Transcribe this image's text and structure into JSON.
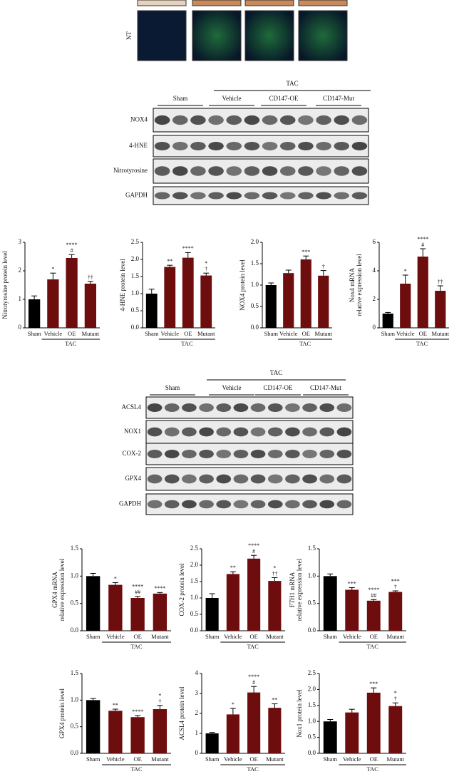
{
  "images": {
    "row_label": "NT"
  },
  "blot1": {
    "group_header": "TAC",
    "groups": [
      "Sham",
      "Vehicle",
      "CD147-OE",
      "CD147-Mut"
    ],
    "rows": [
      "NOX4",
      "4-HNE",
      "Nitrotyrosine",
      "GAPDH"
    ]
  },
  "blot2": {
    "group_header": "TAC",
    "groups": [
      "Sham",
      "Vehicle",
      "CD147-OE",
      "CD147-Mut"
    ],
    "rows": [
      "ACSL4",
      "NOX1",
      "COX-2",
      "GPX4",
      "GAPDH"
    ]
  },
  "chart_data": [
    {
      "type": "bar",
      "y_label": "Nitrotyrosine protein level",
      "x_group_label": "TAC",
      "categories": [
        "Sham",
        "Vehicle",
        "OE",
        "Mutant"
      ],
      "colors": [
        "#000000",
        "#6e0d0d",
        "#6e0d0d",
        "#6e0d0d"
      ],
      "values": [
        1,
        1.7,
        2.45,
        1.55
      ],
      "errors": [
        0.12,
        0.22,
        0.12,
        0.08
      ],
      "annotations": [
        [],
        [
          "*"
        ],
        [
          "****",
          "#"
        ],
        [
          "††"
        ]
      ],
      "ylim": [
        0,
        3
      ],
      "yticks": [
        0,
        1,
        2,
        3
      ]
    },
    {
      "type": "bar",
      "y_label": "4-HNE protein level",
      "x_group_label": "TAC",
      "categories": [
        "Sham",
        "Vehicle",
        "OE",
        "Mutant"
      ],
      "colors": [
        "#000000",
        "#6e0d0d",
        "#6e0d0d",
        "#6e0d0d"
      ],
      "values": [
        1,
        1.78,
        2.05,
        1.53
      ],
      "errors": [
        0.13,
        0.05,
        0.15,
        0.07
      ],
      "annotations": [
        [],
        [
          "**"
        ],
        [
          "****"
        ],
        [
          "*",
          "†"
        ]
      ],
      "ylim": [
        0,
        2.5
      ],
      "yticks": [
        {
          "value": 0,
          "label": "0.0"
        },
        0.5,
        {
          "value": 1,
          "label": "1.0"
        },
        1.5,
        {
          "value": 2,
          "label": "2.0"
        },
        2.5
      ]
    },
    {
      "type": "bar",
      "y_label": "NOX4 protein level",
      "x_group_label": "TAC",
      "categories": [
        "Sham",
        "Vehicle",
        "OE",
        "Mutant"
      ],
      "colors": [
        "#000000",
        "#6e0d0d",
        "#6e0d0d",
        "#6e0d0d"
      ],
      "values": [
        1,
        1.28,
        1.6,
        1.22
      ],
      "errors": [
        0.05,
        0.07,
        0.08,
        0.12
      ],
      "annotations": [
        [],
        [],
        [
          "***"
        ],
        [
          "†"
        ]
      ],
      "ylim": [
        0,
        2
      ],
      "yticks": [
        {
          "value": 0,
          "label": "0.0"
        },
        0.5,
        {
          "value": 1,
          "label": "1.0"
        },
        1.5,
        {
          "value": 2,
          "label": "2.0"
        }
      ]
    },
    {
      "type": "bar",
      "y_label": [
        "Nox4 mRNA",
        "relative expression level"
      ],
      "x_group_label": "TAC",
      "categories": [
        "Sham",
        "Vehicle",
        "OE",
        "Mutant"
      ],
      "colors": [
        "#000000",
        "#6e0d0d",
        "#6e0d0d",
        "#6e0d0d"
      ],
      "values": [
        1,
        3.1,
        5,
        2.6
      ],
      "errors": [
        0.08,
        0.6,
        0.55,
        0.35
      ],
      "annotations": [
        [],
        [
          "*"
        ],
        [
          "****",
          "#"
        ],
        [
          "††"
        ]
      ],
      "ylim": [
        0,
        6
      ],
      "yticks": [
        0,
        2,
        4,
        6
      ]
    },
    {
      "type": "bar",
      "y_label": [
        "GPX4 mRNA",
        "relative expression level"
      ],
      "x_group_label": "TAC",
      "categories": [
        "Sham",
        "Vehicle",
        "OE",
        "Mutant"
      ],
      "colors": [
        "#000000",
        "#6e0d0d",
        "#6e0d0d",
        "#6e0d0d"
      ],
      "values": [
        1,
        0.84,
        0.6,
        0.68
      ],
      "errors": [
        0.05,
        0.04,
        0.03,
        0.02
      ],
      "annotations": [
        [],
        [
          "*"
        ],
        [
          "****",
          "##"
        ],
        [
          "****"
        ]
      ],
      "ylim": [
        0,
        1.5
      ],
      "yticks": [
        {
          "value": 0,
          "label": "0.0"
        },
        0.5,
        {
          "value": 1,
          "label": "1.0"
        },
        1.5
      ]
    },
    {
      "type": "bar",
      "y_label": "COX-2 protein level",
      "x_group_label": "TAC",
      "categories": [
        "Sham",
        "Vehicle",
        "OE",
        "Mutant"
      ],
      "colors": [
        "#000000",
        "#6e0d0d",
        "#6e0d0d",
        "#6e0d0d"
      ],
      "values": [
        1,
        1.73,
        2.2,
        1.52
      ],
      "errors": [
        0.13,
        0.07,
        0.1,
        0.1
      ],
      "annotations": [
        [],
        [
          "**"
        ],
        [
          "****",
          "#"
        ],
        [
          "*",
          "††"
        ]
      ],
      "ylim": [
        0,
        2.5
      ],
      "yticks": [
        {
          "value": 0,
          "label": "0.0"
        },
        0.5,
        {
          "value": 1,
          "label": "1.0"
        },
        1.5,
        {
          "value": 2,
          "label": "2.0"
        },
        2.5
      ]
    },
    {
      "type": "bar",
      "y_label": [
        "FTH1 mRNA",
        "relative expression level"
      ],
      "x_group_label": "TAC",
      "categories": [
        "Sham",
        "Vehicle",
        "OE",
        "Mutant"
      ],
      "colors": [
        "#000000",
        "#6e0d0d",
        "#6e0d0d",
        "#6e0d0d"
      ],
      "values": [
        1,
        0.75,
        0.55,
        0.71
      ],
      "errors": [
        0.04,
        0.04,
        0.02,
        0.02
      ],
      "annotations": [
        [],
        [
          "***"
        ],
        [
          "****",
          "##"
        ],
        [
          "***",
          "†"
        ]
      ],
      "ylim": [
        0,
        1.5
      ],
      "yticks": [
        {
          "value": 0,
          "label": "0.0"
        },
        0.5,
        {
          "value": 1,
          "label": "1.0"
        },
        1.5
      ]
    },
    {
      "type": "bar",
      "y_label": "GPX4 protein level",
      "x_group_label": "TAC",
      "categories": [
        "Sham",
        "Vehicle",
        "OE",
        "Mutant"
      ],
      "colors": [
        "#000000",
        "#6e0d0d",
        "#6e0d0d",
        "#6e0d0d"
      ],
      "values": [
        1,
        0.8,
        0.68,
        0.83
      ],
      "errors": [
        0.03,
        0.03,
        0.03,
        0.07
      ],
      "annotations": [
        [],
        [
          "**"
        ],
        [
          "****"
        ],
        [
          "*",
          "†"
        ]
      ],
      "ylim": [
        0,
        1.5
      ],
      "yticks": [
        {
          "value": 0,
          "label": "0.0"
        },
        0.5,
        {
          "value": 1,
          "label": "1.0"
        },
        1.5
      ]
    },
    {
      "type": "bar",
      "y_label": "ACSL4 protein level",
      "x_group_label": "TAC",
      "categories": [
        "Sham",
        "Vehicle",
        "OE",
        "Mutant"
      ],
      "colors": [
        "#000000",
        "#6e0d0d",
        "#6e0d0d",
        "#6e0d0d"
      ],
      "values": [
        1,
        1.95,
        3.05,
        2.28
      ],
      "errors": [
        0.05,
        0.3,
        0.3,
        0.2
      ],
      "annotations": [
        [],
        [
          "*"
        ],
        [
          "****",
          "#"
        ],
        [
          "**"
        ]
      ],
      "ylim": [
        0,
        4
      ],
      "yticks": [
        0,
        1,
        2,
        3,
        4
      ]
    },
    {
      "type": "bar",
      "y_label": "Nox1 protein level",
      "x_group_label": "TAC",
      "categories": [
        "Sham",
        "Vehicle",
        "OE",
        "Mutant"
      ],
      "colors": [
        "#000000",
        "#6e0d0d",
        "#6e0d0d",
        "#6e0d0d"
      ],
      "values": [
        1,
        1.28,
        1.9,
        1.48
      ],
      "errors": [
        0.06,
        0.1,
        0.15,
        0.1
      ],
      "annotations": [
        [],
        [],
        [
          "***"
        ],
        [
          "*",
          "†"
        ]
      ],
      "ylim": [
        0,
        2.5
      ],
      "yticks": [
        {
          "value": 0,
          "label": "0.0"
        },
        0.5,
        {
          "value": 1,
          "label": "1.0"
        },
        1.5,
        {
          "value": 2,
          "label": "2.0"
        },
        2.5
      ]
    }
  ]
}
